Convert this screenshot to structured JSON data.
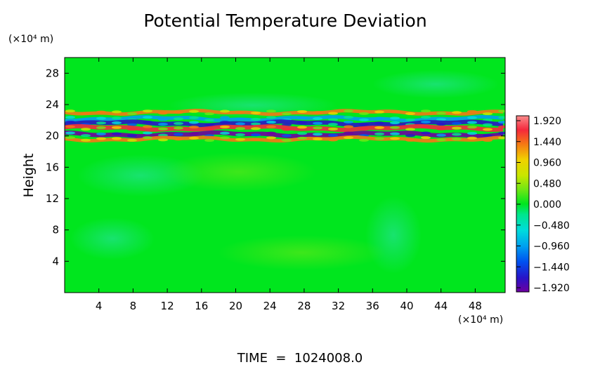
{
  "chart_data": {
    "type": "heatmap",
    "title": "Potential Temperature Deviation",
    "ylabel": "Height",
    "y_unit_label": "(×10⁴ m)",
    "x_unit_label": "(×10⁴ m)",
    "footer": "TIME  =  1024008.0",
    "xlim": [
      0,
      51.5
    ],
    "ylim": [
      0,
      30
    ],
    "x_ticks": [
      4,
      8,
      12,
      16,
      20,
      24,
      28,
      32,
      36,
      40,
      44,
      48
    ],
    "y_ticks": [
      4,
      8,
      12,
      16,
      20,
      24,
      28
    ],
    "colorbar": {
      "tick_labels": [
        "1.920",
        "1.440",
        "0.960",
        "0.480",
        "0.000",
        "−0.480",
        "−0.960",
        "−1.440",
        "−1.920"
      ],
      "range": [
        -1.92,
        1.92
      ],
      "colors": [
        "#fa8c8c",
        "#f5283c",
        "#f57814",
        "#f0d200",
        "#c8e600",
        "#6ee614",
        "#00e61e",
        "#00e68c",
        "#00dcdc",
        "#00a0f0",
        "#0050f0",
        "#2814c8",
        "#6e00a0"
      ]
    },
    "background_value": 0.0,
    "bands": [
      {
        "y_center": 23.0,
        "amplitude": 1.3,
        "note": "upper red/orange wave band"
      },
      {
        "y_center": 22.2,
        "amplitude": -0.9,
        "note": "cyan band"
      },
      {
        "y_center": 21.6,
        "amplitude": -1.7,
        "note": "blue/purple band"
      },
      {
        "y_center": 21.0,
        "amplitude": 1.6,
        "note": "red band"
      },
      {
        "y_center": 20.2,
        "amplitude": -1.8,
        "note": "lower blue band"
      },
      {
        "y_center": 19.6,
        "amplitude": 1.2,
        "note": "lower orange band"
      }
    ]
  }
}
